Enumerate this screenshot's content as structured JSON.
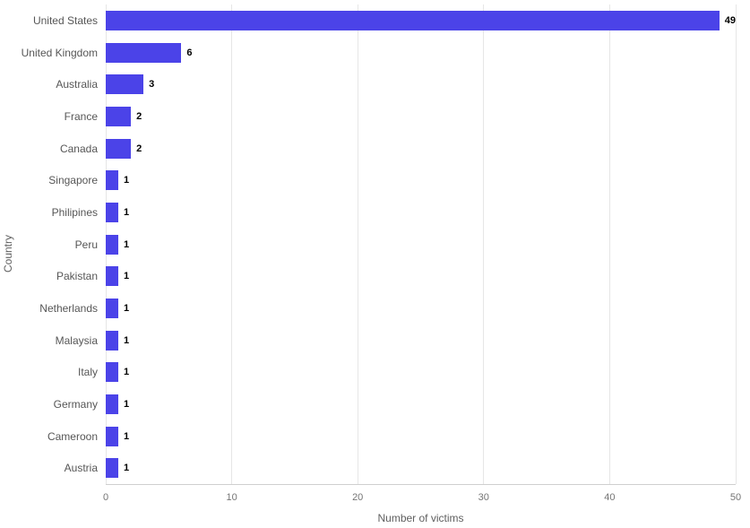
{
  "chart_data": {
    "type": "bar",
    "orientation": "horizontal",
    "title": "",
    "xlabel": "Number of victims",
    "ylabel": "Country",
    "categories": [
      "United States",
      "United Kingdom",
      "Australia",
      "France",
      "Canada",
      "Singapore",
      "Philipines",
      "Peru",
      "Pakistan",
      "Netherlands",
      "Malaysia",
      "Italy",
      "Germany",
      "Cameroon",
      "Austria"
    ],
    "values": [
      49,
      6,
      3,
      2,
      2,
      1,
      1,
      1,
      1,
      1,
      1,
      1,
      1,
      1,
      1
    ],
    "xlim": [
      0,
      50
    ],
    "xticks": [
      0,
      10,
      20,
      30,
      40,
      50
    ],
    "grid": true,
    "legend": "none",
    "bar_color": "#4b43e8",
    "value_label_color": "#000000",
    "axis_text_color": "#757575",
    "gridline_color": "#e6e6e6"
  }
}
